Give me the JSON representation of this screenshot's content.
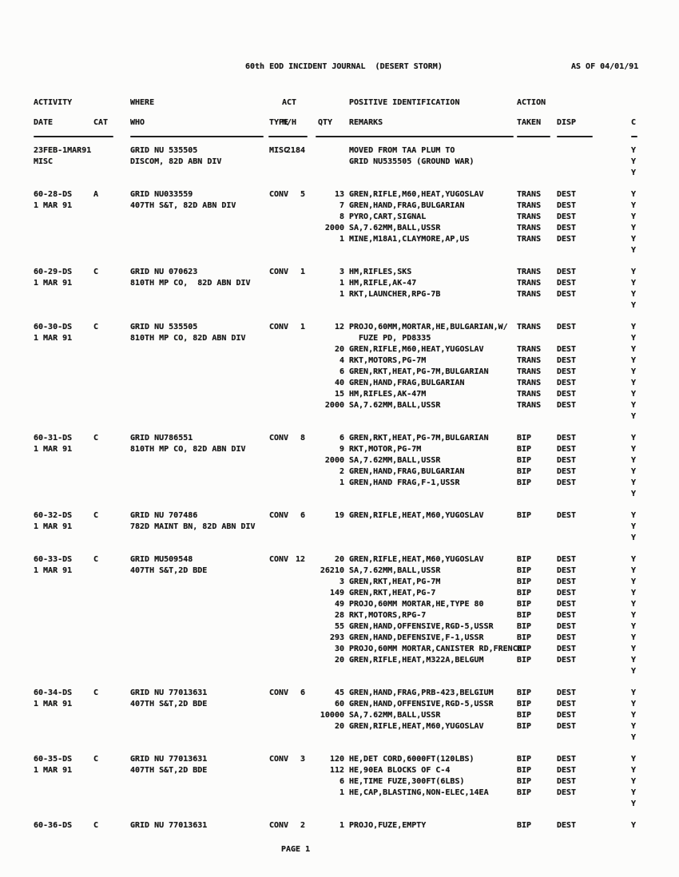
{
  "page": {
    "title_line": "60th EOD INCIDENT JOURNAL  (DESERT STORM)",
    "as_of": "AS OF 04/01/91",
    "footer": "PAGE 1"
  },
  "columns": {
    "activity_1": "ACTIVITY",
    "activity_2": "DATE",
    "cat": "CAT",
    "where_1": "WHERE",
    "where_2": "WHO",
    "type": "TYPE",
    "act_1": "ACT",
    "act_2": "N/H",
    "qty": "QTY",
    "remarks_1": "POSITIVE IDENTIFICATION",
    "remarks_2": "REMARKS",
    "action_1": "ACTION",
    "action_2": "TAKEN",
    "disp": "DISP",
    "c": "C"
  },
  "journal": {
    "lines": [
      {
        "activity": "23FEB-1MAR91",
        "where": "GRID NU 535505",
        "type": "MISC",
        "act": "2184",
        "remarks": "MOVED FROM TAA PLUM TO",
        "c": "Y"
      },
      {
        "activity": "MISC",
        "where": "DISCOM, 82D ABN DIV",
        "remarks": "GRID NU535505 (GROUND WAR)",
        "c": "Y"
      },
      {
        "c": "Y"
      },
      {
        "gap": true,
        "activity": "60-28-DS",
        "cat": "A",
        "where": "GRID NU033559",
        "type": "CONV",
        "act": "5",
        "qty": "13",
        "remarks": "GREN,RIFLE,M60,HEAT,YUGOSLAV",
        "action": "TRANS",
        "disp": "DEST",
        "c": "Y"
      },
      {
        "activity": "1 MAR 91",
        "where": "407TH S&T, 82D ABN DIV",
        "qty": "7",
        "remarks": "GREN,HAND,FRAG,BULGARIAN",
        "action": "TRANS",
        "disp": "DEST",
        "c": "Y"
      },
      {
        "qty": "8",
        "remarks": "PYRO,CART,SIGNAL",
        "action": "TRANS",
        "disp": "DEST",
        "c": "Y"
      },
      {
        "qty": "2000",
        "remarks": "SA,7.62MM,BALL,USSR",
        "action": "TRANS",
        "disp": "DEST",
        "c": "Y"
      },
      {
        "qty": "1",
        "remarks": "MINE,M18A1,CLAYMORE,AP,US",
        "action": "TRANS",
        "disp": "DEST",
        "c": "Y"
      },
      {
        "c": "Y"
      },
      {
        "gap": true,
        "activity": "60-29-DS",
        "cat": "C",
        "where": "GRID NU 070623",
        "type": "CONV",
        "act": "1",
        "qty": "3",
        "remarks": "HM,RIFLES,SKS",
        "action": "TRANS",
        "disp": "DEST",
        "c": "Y"
      },
      {
        "activity": "1 MAR 91",
        "where": "810TH MP CO,  82D ABN DIV",
        "qty": "1",
        "remarks": "HM,RIFLE,AK-47",
        "action": "TRANS",
        "disp": "DEST",
        "c": "Y"
      },
      {
        "qty": "1",
        "remarks": "RKT,LAUNCHER,RPG-7B",
        "action": "TRANS",
        "disp": "DEST",
        "c": "Y"
      },
      {
        "c": "Y"
      },
      {
        "gap": true,
        "activity": "60-30-DS",
        "cat": "C",
        "where": "GRID NU 535505",
        "type": "CONV",
        "act": "1",
        "qty": "12",
        "remarks": "PROJO,60MM,MORTAR,HE,BULGARIAN,W/",
        "action": "TRANS",
        "disp": "DEST",
        "c": "Y"
      },
      {
        "activity": "1 MAR 91",
        "where": "810TH MP CO, 82D ABN DIV",
        "remarks": "  FUZE PD, PD8335",
        "c": "Y"
      },
      {
        "qty": "20",
        "remarks": "GREN,RIFLE,M60,HEAT,YUGOSLAV",
        "action": "TRANS",
        "disp": "DEST",
        "c": "Y"
      },
      {
        "qty": "4",
        "remarks": "RKT,MOTORS,PG-7M",
        "action": "TRANS",
        "disp": "DEST",
        "c": "Y"
      },
      {
        "qty": "6",
        "remarks": "GREN,RKT,HEAT,PG-7M,BULGARIAN",
        "action": "TRANS",
        "disp": "DEST",
        "c": "Y"
      },
      {
        "qty": "40",
        "remarks": "GREN,HAND,FRAG,BULGARIAN",
        "action": "TRANS",
        "disp": "DEST",
        "c": "Y"
      },
      {
        "qty": "15",
        "remarks": "HM,RIFLES,AK-47M",
        "action": "TRANS",
        "disp": "DEST",
        "c": "Y"
      },
      {
        "qty": "2000",
        "remarks": "SA,7.62MM,BALL,USSR",
        "action": "TRANS",
        "disp": "DEST",
        "c": "Y"
      },
      {
        "c": "Y"
      },
      {
        "gap": true,
        "activity": "60-31-DS",
        "cat": "C",
        "where": "GRID NU786551",
        "type": "CONV",
        "act": "8",
        "qty": "6",
        "remarks": "GREN,RKT,HEAT,PG-7M,BULGARIAN",
        "action": "BIP",
        "disp": "DEST",
        "c": "Y"
      },
      {
        "activity": "1 MAR 91",
        "where": "810TH MP CO, 82D ABN DIV",
        "qty": "9",
        "remarks": "RKT,MOTOR,PG-7M",
        "action": "BIP",
        "disp": "DEST",
        "c": "Y"
      },
      {
        "qty": "2000",
        "remarks": "SA,7.62MM,BALL,USSR",
        "action": "BIP",
        "disp": "DEST",
        "c": "Y"
      },
      {
        "qty": "2",
        "remarks": "GREN,HAND,FRAG,BULGARIAN",
        "action": "BIP",
        "disp": "DEST",
        "c": "Y"
      },
      {
        "qty": "1",
        "remarks": "GREN,HAND FRAG,F-1,USSR",
        "action": "BIP",
        "disp": "DEST",
        "c": "Y"
      },
      {
        "c": "Y"
      },
      {
        "gap": true,
        "activity": "60-32-DS",
        "cat": "C",
        "where": "GRID NU 707486",
        "type": "CONV",
        "act": "6",
        "qty": "19",
        "remarks": "GREN,RIFLE,HEAT,M60,YUGOSLAV",
        "action": "BIP",
        "disp": "DEST",
        "c": "Y"
      },
      {
        "activity": "1 MAR 91",
        "where": "782D MAINT BN, 82D ABN DIV",
        "c": "Y"
      },
      {
        "c": "Y"
      },
      {
        "gap": true,
        "activity": "60-33-DS",
        "cat": "C",
        "where": "GRID MU509548",
        "type": "CONV",
        "act": "12",
        "qty": "20",
        "remarks": "GREN,RIFLE,HEAT,M60,YUGOSLAV",
        "action": "BIP",
        "disp": "DEST",
        "c": "Y"
      },
      {
        "activity": "1 MAR 91",
        "where": "407TH S&T,2D BDE",
        "qty": "26210",
        "remarks": "SA,7.62MM,BALL,USSR",
        "action": "BIP",
        "disp": "DEST",
        "c": "Y"
      },
      {
        "qty": "3",
        "remarks": "GREN,RKT,HEAT,PG-7M",
        "action": "BIP",
        "disp": "DEST",
        "c": "Y"
      },
      {
        "qty": "149",
        "remarks": "GREN,RKT,HEAT,PG-7",
        "action": "BIP",
        "disp": "DEST",
        "c": "Y"
      },
      {
        "qty": "49",
        "remarks": "PROJO,60MM MORTAR,HE,TYPE 80",
        "action": "BIP",
        "disp": "DEST",
        "c": "Y"
      },
      {
        "qty": "28",
        "remarks": "RKT,MOTORS,RPG-7",
        "action": "BIP",
        "disp": "DEST",
        "c": "Y"
      },
      {
        "qty": "55",
        "remarks": "GREN,HAND,OFFENSIVE,RGD-5,USSR",
        "action": "BIP",
        "disp": "DEST",
        "c": "Y"
      },
      {
        "qty": "293",
        "remarks": "GREN,HAND,DEFENSIVE,F-1,USSR",
        "action": "BIP",
        "disp": "DEST",
        "c": "Y"
      },
      {
        "qty": "30",
        "remarks": "PROJO,60MM MORTAR,CANISTER RD,FRENCH",
        "action": "BIP",
        "disp": "DEST",
        "c": "Y"
      },
      {
        "qty": "20",
        "remarks": "GREN,RIFLE,HEAT,M322A,BELGUM",
        "action": "BIP",
        "disp": "DEST",
        "c": "Y"
      },
      {
        "c": "Y"
      },
      {
        "gap": true,
        "activity": "60-34-DS",
        "cat": "C",
        "where": "GRID NU 77013631",
        "type": "CONV",
        "act": "6",
        "qty": "45",
        "remarks": "GREN,HAND,FRAG,PRB-423,BELGIUM",
        "action": "BIP",
        "disp": "DEST",
        "c": "Y"
      },
      {
        "activity": "1 MAR 91",
        "where": "407TH S&T,2D BDE",
        "qty": "60",
        "remarks": "GREN,HAND,OFFENSIVE,RGD-5,USSR",
        "action": "BIP",
        "disp": "DEST",
        "c": "Y"
      },
      {
        "qty": "10000",
        "remarks": "SA,7.62MM,BALL,USSR",
        "action": "BIP",
        "disp": "DEST",
        "c": "Y"
      },
      {
        "qty": "20",
        "remarks": "GREN,RIFLE,HEAT,M60,YUGOSLAV",
        "action": "BIP",
        "disp": "DEST",
        "c": "Y"
      },
      {
        "c": "Y"
      },
      {
        "gap": true,
        "activity": "60-35-DS",
        "cat": "C",
        "where": "GRID NU 77013631",
        "type": "CONV",
        "act": "3",
        "qty": "120",
        "remarks": "HE,DET CORD,6000FT(120LBS)",
        "action": "BIP",
        "disp": "DEST",
        "c": "Y"
      },
      {
        "activity": "1 MAR 91",
        "where": "407TH S&T,2D BDE",
        "qty": "112",
        "remarks": "HE,90EA BLOCKS OF C-4",
        "action": "BIP",
        "disp": "DEST",
        "c": "Y"
      },
      {
        "qty": "6",
        "remarks": "HE,TIME FUZE,300FT(6LBS)",
        "action": "BIP",
        "disp": "DEST",
        "c": "Y"
      },
      {
        "qty": "1",
        "remarks": "HE,CAP,BLASTING,NON-ELEC,14EA",
        "action": "BIP",
        "disp": "DEST",
        "c": "Y"
      },
      {
        "c": "Y"
      },
      {
        "gap": true,
        "activity": "60-36-DS",
        "cat": "C",
        "where": "GRID NU 77013631",
        "type": "CONV",
        "act": "2",
        "qty": "1",
        "remarks": "PROJO,FUZE,EMPTY",
        "action": "BIP",
        "disp": "DEST",
        "c": "Y"
      }
    ]
  }
}
